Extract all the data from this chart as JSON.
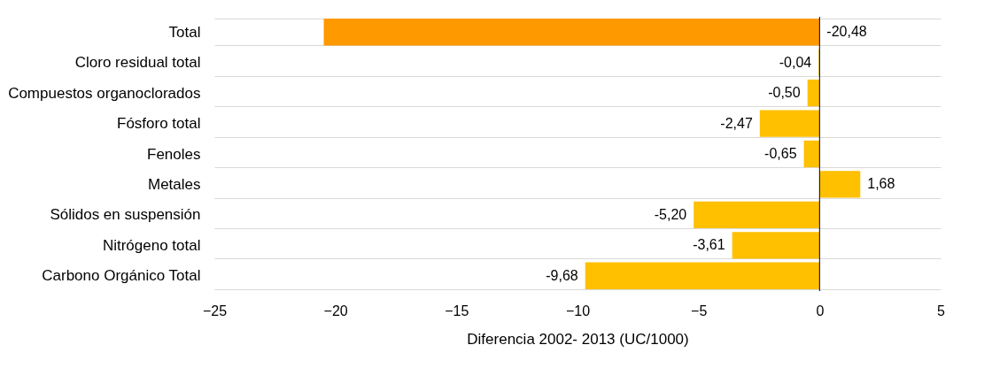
{
  "chart_data": {
    "type": "bar",
    "orientation": "horizontal",
    "xlabel": "Diferencia 2002- 2013 (UC/1000)",
    "categories": [
      "Total",
      "Cloro residual total",
      "Compuestos organoclorados",
      "Fósforo total",
      "Fenoles",
      "Metales",
      "Sólidos en suspensión",
      "Nitrógeno total",
      "Carbono Orgánico Total"
    ],
    "values": [
      -20.48,
      -0.04,
      -0.5,
      -2.47,
      -0.65,
      1.68,
      -5.2,
      -3.61,
      -9.68
    ],
    "value_labels": [
      "-20,48",
      "-0,04",
      "-0,50",
      "-2,47",
      "-0,65",
      "1,68",
      "-5,20",
      "-3,61",
      "-9,68"
    ],
    "colors": [
      "#ff9900",
      "#ffc000",
      "#ffc000",
      "#ffc000",
      "#ffc000",
      "#ffc000",
      "#ffc000",
      "#ffc000",
      "#ffc000"
    ],
    "xlim": [
      -25,
      5
    ],
    "xticks": [
      -25,
      -20,
      -15,
      -10,
      -5,
      0,
      5
    ],
    "grid": "y"
  }
}
